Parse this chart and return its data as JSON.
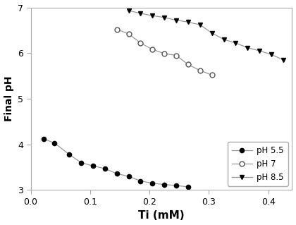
{
  "xlabel": "Ti (mM)",
  "ylabel": "Final pH",
  "xlim": [
    0.0,
    0.44
  ],
  "ylim": [
    3.0,
    7.0
  ],
  "xticks": [
    0.0,
    0.1,
    0.2,
    0.3,
    0.4
  ],
  "yticks": [
    3,
    4,
    5,
    6,
    7
  ],
  "spine_color": "#aaaaaa",
  "tick_color": "#aaaaaa",
  "line_color": "#999999",
  "ph55": {
    "label": "pH 5.5",
    "x": [
      0.022,
      0.04,
      0.065,
      0.085,
      0.105,
      0.125,
      0.145,
      0.165,
      0.185,
      0.205,
      0.225,
      0.245,
      0.265
    ],
    "y": [
      4.12,
      4.03,
      3.78,
      3.6,
      3.53,
      3.47,
      3.36,
      3.3,
      3.2,
      3.15,
      3.12,
      3.1,
      3.07
    ]
  },
  "ph7": {
    "label": "pH 7",
    "x": [
      0.145,
      0.165,
      0.185,
      0.205,
      0.225,
      0.245,
      0.265,
      0.285,
      0.305
    ],
    "y": [
      6.52,
      6.42,
      6.22,
      6.08,
      5.99,
      5.95,
      5.75,
      5.62,
      5.52
    ]
  },
  "ph85": {
    "label": "pH 8.5",
    "x": [
      0.165,
      0.185,
      0.205,
      0.225,
      0.245,
      0.265,
      0.285,
      0.305,
      0.325,
      0.345,
      0.365,
      0.385,
      0.405,
      0.425
    ],
    "y": [
      6.93,
      6.87,
      6.82,
      6.78,
      6.72,
      6.68,
      6.62,
      6.44,
      6.3,
      6.22,
      6.12,
      6.05,
      5.97,
      5.85
    ]
  }
}
